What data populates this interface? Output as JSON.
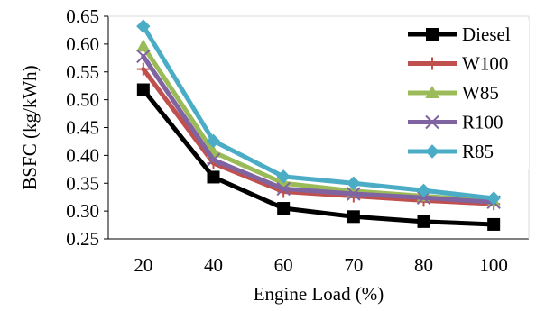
{
  "chart_data": {
    "type": "line",
    "title": "",
    "xlabel": "Engine Load (%)",
    "ylabel": "BSFC (kg/kWh)",
    "categories": [
      "20",
      "40",
      "60",
      "70",
      "80",
      "100"
    ],
    "ylim": [
      0.25,
      0.65
    ],
    "yticks": [
      "0.25",
      "0.30",
      "0.35",
      "0.40",
      "0.45",
      "0.50",
      "0.55",
      "0.60",
      "0.65"
    ],
    "grid": false,
    "legend_position": "top-right",
    "series": [
      {
        "name": "Diesel",
        "color": "#000000",
        "marker": "square",
        "values": [
          0.518,
          0.361,
          0.305,
          0.29,
          0.281,
          0.276
        ]
      },
      {
        "name": "W100",
        "color": "#c0504d",
        "marker": "plus",
        "values": [
          0.555,
          0.386,
          0.335,
          0.327,
          0.319,
          0.313
        ]
      },
      {
        "name": "W85",
        "color": "#9bbb59",
        "marker": "triangle",
        "values": [
          0.596,
          0.406,
          0.35,
          0.336,
          0.327,
          0.318
        ]
      },
      {
        "name": "R100",
        "color": "#8064a2",
        "marker": "x",
        "values": [
          0.578,
          0.392,
          0.34,
          0.331,
          0.324,
          0.316
        ]
      },
      {
        "name": "R85",
        "color": "#4bacc6",
        "marker": "diamond",
        "values": [
          0.632,
          0.426,
          0.362,
          0.35,
          0.337,
          0.323
        ]
      }
    ]
  }
}
